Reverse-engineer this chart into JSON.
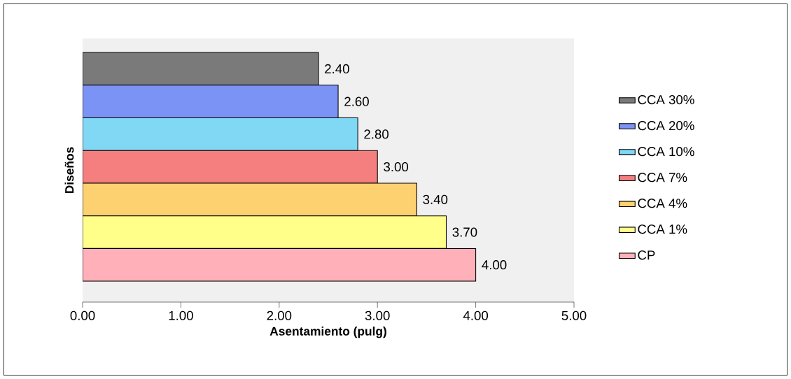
{
  "chart_data": {
    "type": "bar",
    "orientation": "horizontal",
    "xlabel": "Asentamiento (pulg)",
    "ylabel": "Diseños",
    "categories": [
      null
    ],
    "series": [
      {
        "name": "CCA 30%",
        "color": "#7a7a7a",
        "values": [
          2.4
        ],
        "value_labels": [
          "2.40"
        ]
      },
      {
        "name": "CCA 20%",
        "color": "#7b93f5",
        "values": [
          2.6
        ],
        "value_labels": [
          "2.60"
        ]
      },
      {
        "name": "CCA 10%",
        "color": "#80d8f5",
        "values": [
          2.8
        ],
        "value_labels": [
          "2.80"
        ]
      },
      {
        "name": "CCA 7%",
        "color": "#f57f7f",
        "values": [
          3.0
        ],
        "value_labels": [
          "3.00"
        ]
      },
      {
        "name": "CCA 4%",
        "color": "#fdd070",
        "values": [
          3.4
        ],
        "value_labels": [
          "3.40"
        ]
      },
      {
        "name": "CCA 1%",
        "color": "#ffff8a",
        "values": [
          3.7
        ],
        "value_labels": [
          "3.70"
        ]
      },
      {
        "name": "CP",
        "color": "#ffb0b8",
        "values": [
          4.0
        ],
        "value_labels": [
          "4.00"
        ]
      }
    ],
    "xlim": [
      0,
      5
    ],
    "xticks": [
      {
        "value": 0,
        "label": "0.00"
      },
      {
        "value": 1,
        "label": "1.00"
      },
      {
        "value": 2,
        "label": "2.00"
      },
      {
        "value": 3,
        "label": "3.00"
      },
      {
        "value": 4,
        "label": "4.00"
      },
      {
        "value": 5,
        "label": "5.00"
      }
    ],
    "legend": "right"
  }
}
